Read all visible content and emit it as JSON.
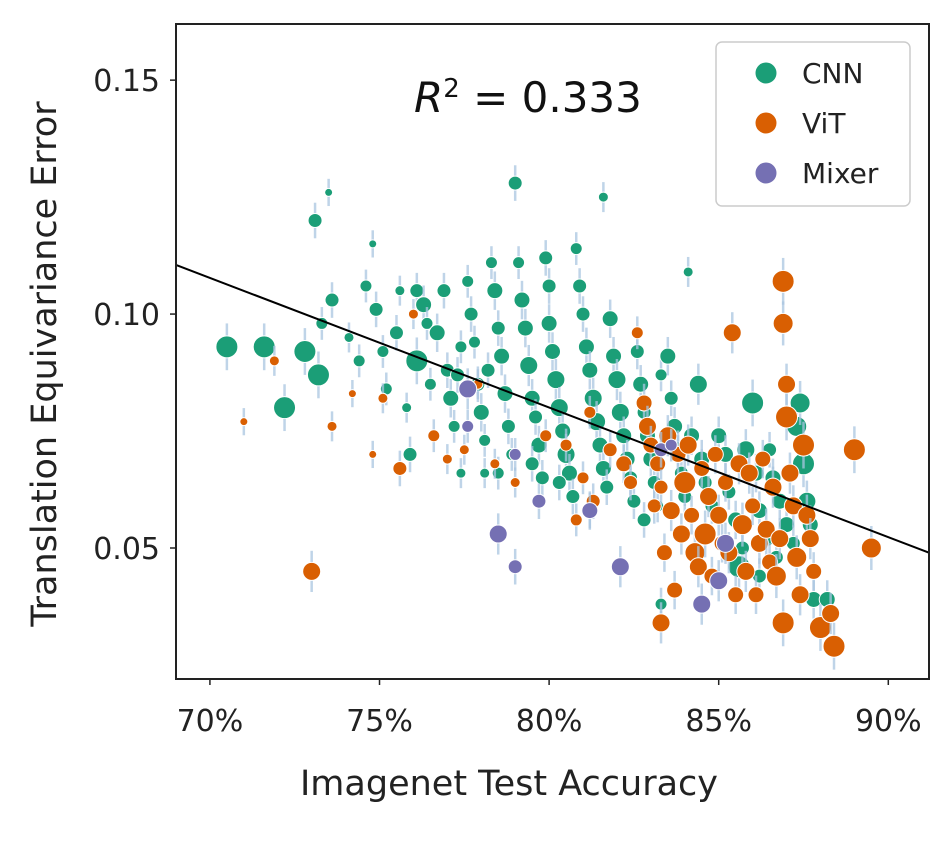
{
  "chart_data": {
    "type": "scatter",
    "xlabel": "Imagenet Test Accuracy",
    "ylabel": "Translation Equivariance Error",
    "xlim": [
      0.69,
      0.912
    ],
    "ylim": [
      0.022,
      0.162
    ],
    "xticks": [
      0.7,
      0.75,
      0.8,
      0.85,
      0.9
    ],
    "xtick_labels": [
      "70%",
      "75%",
      "80%",
      "85%",
      "90%"
    ],
    "yticks": [
      0.05,
      0.1,
      0.15
    ],
    "ytick_labels": [
      "0.05",
      "0.10",
      "0.15"
    ],
    "grid": false,
    "legend_position": "top-right",
    "annotation": {
      "prefix": "R",
      "sup": "2",
      "suffix": " = 0.333"
    },
    "fit_line": {
      "x": [
        0.69,
        0.912
      ],
      "y": [
        0.1105,
        0.049
      ]
    },
    "series": [
      {
        "name": "CNN",
        "color": "#1b9e77",
        "points": [
          [
            0.705,
            0.093,
            11
          ],
          [
            0.716,
            0.093,
            11
          ],
          [
            0.728,
            0.092,
            11
          ],
          [
            0.722,
            0.08,
            11
          ],
          [
            0.732,
            0.087,
            11
          ],
          [
            0.731,
            0.12,
            7
          ],
          [
            0.733,
            0.098,
            6
          ],
          [
            0.735,
            0.126,
            4
          ],
          [
            0.736,
            0.103,
            7
          ],
          [
            0.741,
            0.095,
            5
          ],
          [
            0.744,
            0.09,
            6
          ],
          [
            0.746,
            0.106,
            6
          ],
          [
            0.748,
            0.115,
            4
          ],
          [
            0.749,
            0.101,
            7
          ],
          [
            0.751,
            0.092,
            6
          ],
          [
            0.752,
            0.084,
            6
          ],
          [
            0.755,
            0.096,
            7
          ],
          [
            0.756,
            0.105,
            5
          ],
          [
            0.758,
            0.08,
            5
          ],
          [
            0.759,
            0.07,
            7
          ],
          [
            0.761,
            0.105,
            7
          ],
          [
            0.761,
            0.09,
            11
          ],
          [
            0.763,
            0.102,
            8
          ],
          [
            0.764,
            0.098,
            6
          ],
          [
            0.765,
            0.085,
            6
          ],
          [
            0.767,
            0.096,
            8
          ],
          [
            0.769,
            0.105,
            7
          ],
          [
            0.77,
            0.088,
            7
          ],
          [
            0.771,
            0.082,
            8
          ],
          [
            0.772,
            0.076,
            6
          ],
          [
            0.773,
            0.087,
            7
          ],
          [
            0.774,
            0.093,
            6
          ],
          [
            0.774,
            0.066,
            5
          ],
          [
            0.776,
            0.107,
            6
          ],
          [
            0.777,
            0.1,
            7
          ],
          [
            0.778,
            0.094,
            6
          ],
          [
            0.779,
            0.085,
            7
          ],
          [
            0.78,
            0.079,
            8
          ],
          [
            0.781,
            0.073,
            6
          ],
          [
            0.781,
            0.066,
            5
          ],
          [
            0.782,
            0.088,
            7
          ],
          [
            0.783,
            0.111,
            6
          ],
          [
            0.784,
            0.105,
            8
          ],
          [
            0.785,
            0.097,
            7
          ],
          [
            0.786,
            0.091,
            8
          ],
          [
            0.787,
            0.083,
            8
          ],
          [
            0.788,
            0.076,
            7
          ],
          [
            0.789,
            0.07,
            6
          ],
          [
            0.79,
            0.128,
            7
          ],
          [
            0.791,
            0.111,
            6
          ],
          [
            0.792,
            0.103,
            8
          ],
          [
            0.793,
            0.097,
            8
          ],
          [
            0.794,
            0.089,
            9
          ],
          [
            0.795,
            0.082,
            8
          ],
          [
            0.796,
            0.078,
            7
          ],
          [
            0.797,
            0.072,
            8
          ],
          [
            0.798,
            0.065,
            7
          ],
          [
            0.799,
            0.112,
            7
          ],
          [
            0.8,
            0.106,
            7
          ],
          [
            0.8,
            0.098,
            8
          ],
          [
            0.801,
            0.092,
            8
          ],
          [
            0.802,
            0.086,
            9
          ],
          [
            0.803,
            0.08,
            9
          ],
          [
            0.804,
            0.075,
            8
          ],
          [
            0.805,
            0.07,
            9
          ],
          [
            0.806,
            0.066,
            8
          ],
          [
            0.807,
            0.061,
            7
          ],
          [
            0.808,
            0.114,
            6
          ],
          [
            0.809,
            0.106,
            7
          ],
          [
            0.81,
            0.1,
            7
          ],
          [
            0.811,
            0.093,
            8
          ],
          [
            0.812,
            0.088,
            8
          ],
          [
            0.813,
            0.082,
            9
          ],
          [
            0.814,
            0.077,
            9
          ],
          [
            0.815,
            0.072,
            8
          ],
          [
            0.816,
            0.067,
            8
          ],
          [
            0.817,
            0.063,
            7
          ],
          [
            0.816,
            0.125,
            5
          ],
          [
            0.818,
            0.099,
            8
          ],
          [
            0.819,
            0.091,
            8
          ],
          [
            0.82,
            0.086,
            9
          ],
          [
            0.821,
            0.079,
            9
          ],
          [
            0.822,
            0.074,
            8
          ],
          [
            0.823,
            0.069,
            8
          ],
          [
            0.824,
            0.065,
            7
          ],
          [
            0.825,
            0.06,
            7
          ],
          [
            0.826,
            0.092,
            7
          ],
          [
            0.827,
            0.085,
            8
          ],
          [
            0.828,
            0.079,
            7
          ],
          [
            0.829,
            0.074,
            8
          ],
          [
            0.83,
            0.069,
            8
          ],
          [
            0.831,
            0.064,
            7
          ],
          [
            0.832,
            0.059,
            6
          ],
          [
            0.833,
            0.087,
            6
          ],
          [
            0.835,
            0.091,
            8
          ],
          [
            0.836,
            0.082,
            7
          ],
          [
            0.837,
            0.076,
            8
          ],
          [
            0.838,
            0.071,
            8
          ],
          [
            0.839,
            0.066,
            7
          ],
          [
            0.84,
            0.061,
            7
          ],
          [
            0.841,
            0.109,
            5
          ],
          [
            0.842,
            0.074,
            8
          ],
          [
            0.844,
            0.085,
            9
          ],
          [
            0.845,
            0.069,
            8
          ],
          [
            0.846,
            0.064,
            7
          ],
          [
            0.848,
            0.059,
            7
          ],
          [
            0.85,
            0.074,
            8
          ],
          [
            0.852,
            0.07,
            8
          ],
          [
            0.853,
            0.062,
            7
          ],
          [
            0.855,
            0.056,
            8
          ],
          [
            0.856,
            0.046,
            11
          ],
          [
            0.858,
            0.071,
            9
          ],
          [
            0.86,
            0.081,
            11
          ],
          [
            0.861,
            0.066,
            8
          ],
          [
            0.862,
            0.058,
            8
          ],
          [
            0.864,
            0.052,
            8
          ],
          [
            0.865,
            0.071,
            7
          ],
          [
            0.866,
            0.065,
            8
          ],
          [
            0.868,
            0.06,
            8
          ],
          [
            0.87,
            0.055,
            8
          ],
          [
            0.872,
            0.051,
            7
          ],
          [
            0.873,
            0.076,
            10
          ],
          [
            0.874,
            0.081,
            10
          ],
          [
            0.875,
            0.068,
            11
          ],
          [
            0.876,
            0.06,
            9
          ],
          [
            0.877,
            0.055,
            8
          ],
          [
            0.878,
            0.039,
            8
          ],
          [
            0.882,
            0.039,
            8
          ],
          [
            0.833,
            0.038,
            6
          ],
          [
            0.862,
            0.044,
            7
          ],
          [
            0.857,
            0.05,
            7
          ],
          [
            0.867,
            0.048,
            7
          ],
          [
            0.828,
            0.056,
            7
          ],
          [
            0.812,
            0.058,
            7
          ],
          [
            0.803,
            0.064,
            7
          ],
          [
            0.795,
            0.068,
            7
          ],
          [
            0.785,
            0.066,
            6
          ]
        ]
      },
      {
        "name": "ViT",
        "color": "#d95f02",
        "points": [
          [
            0.719,
            0.09,
            5
          ],
          [
            0.71,
            0.077,
            4
          ],
          [
            0.73,
            0.045,
            9
          ],
          [
            0.736,
            0.076,
            5
          ],
          [
            0.742,
            0.083,
            4
          ],
          [
            0.748,
            0.07,
            4
          ],
          [
            0.751,
            0.082,
            5
          ],
          [
            0.756,
            0.067,
            7
          ],
          [
            0.76,
            0.1,
            5
          ],
          [
            0.766,
            0.074,
            6
          ],
          [
            0.77,
            0.069,
            5
          ],
          [
            0.775,
            0.071,
            5
          ],
          [
            0.779,
            0.085,
            5
          ],
          [
            0.784,
            0.068,
            5
          ],
          [
            0.79,
            0.064,
            5
          ],
          [
            0.799,
            0.074,
            6
          ],
          [
            0.805,
            0.072,
            6
          ],
          [
            0.808,
            0.056,
            6
          ],
          [
            0.81,
            0.065,
            6
          ],
          [
            0.812,
            0.079,
            6
          ],
          [
            0.813,
            0.06,
            7
          ],
          [
            0.818,
            0.071,
            7
          ],
          [
            0.822,
            0.068,
            8
          ],
          [
            0.824,
            0.064,
            7
          ],
          [
            0.826,
            0.096,
            6
          ],
          [
            0.828,
            0.081,
            8
          ],
          [
            0.829,
            0.076,
            9
          ],
          [
            0.83,
            0.072,
            8
          ],
          [
            0.831,
            0.059,
            7
          ],
          [
            0.832,
            0.068,
            8
          ],
          [
            0.833,
            0.063,
            7
          ],
          [
            0.834,
            0.049,
            8
          ],
          [
            0.835,
            0.074,
            9
          ],
          [
            0.836,
            0.058,
            9
          ],
          [
            0.837,
            0.041,
            8
          ],
          [
            0.838,
            0.07,
            8
          ],
          [
            0.839,
            0.053,
            9
          ],
          [
            0.84,
            0.064,
            11
          ],
          [
            0.841,
            0.072,
            9
          ],
          [
            0.842,
            0.057,
            8
          ],
          [
            0.843,
            0.049,
            10
          ],
          [
            0.844,
            0.046,
            9
          ],
          [
            0.845,
            0.067,
            8
          ],
          [
            0.846,
            0.053,
            11
          ],
          [
            0.847,
            0.061,
            9
          ],
          [
            0.848,
            0.044,
            8
          ],
          [
            0.849,
            0.07,
            8
          ],
          [
            0.85,
            0.057,
            9
          ],
          [
            0.851,
            0.051,
            8
          ],
          [
            0.852,
            0.064,
            8
          ],
          [
            0.853,
            0.049,
            9
          ],
          [
            0.854,
            0.096,
            9
          ],
          [
            0.855,
            0.04,
            8
          ],
          [
            0.856,
            0.068,
            9
          ],
          [
            0.857,
            0.055,
            10
          ],
          [
            0.858,
            0.045,
            9
          ],
          [
            0.859,
            0.066,
            9
          ],
          [
            0.86,
            0.059,
            8
          ],
          [
            0.861,
            0.04,
            8
          ],
          [
            0.862,
            0.051,
            9
          ],
          [
            0.863,
            0.069,
            8
          ],
          [
            0.864,
            0.054,
            9
          ],
          [
            0.865,
            0.047,
            8
          ],
          [
            0.866,
            0.063,
            9
          ],
          [
            0.867,
            0.044,
            10
          ],
          [
            0.868,
            0.052,
            9
          ],
          [
            0.869,
            0.107,
            11
          ],
          [
            0.869,
            0.098,
            10
          ],
          [
            0.87,
            0.085,
            9
          ],
          [
            0.87,
            0.078,
            11
          ],
          [
            0.871,
            0.066,
            9
          ],
          [
            0.872,
            0.059,
            9
          ],
          [
            0.873,
            0.048,
            10
          ],
          [
            0.874,
            0.04,
            9
          ],
          [
            0.875,
            0.072,
            11
          ],
          [
            0.876,
            0.057,
            9
          ],
          [
            0.877,
            0.052,
            9
          ],
          [
            0.878,
            0.045,
            8
          ],
          [
            0.88,
            0.033,
            11
          ],
          [
            0.884,
            0.029,
            11
          ],
          [
            0.89,
            0.071,
            11
          ],
          [
            0.895,
            0.05,
            10
          ],
          [
            0.869,
            0.034,
            11
          ],
          [
            0.883,
            0.036,
            9
          ],
          [
            0.833,
            0.034,
            9
          ]
        ]
      },
      {
        "name": "Mixer",
        "color": "#7570b3",
        "points": [
          [
            0.776,
            0.084,
            9
          ],
          [
            0.776,
            0.076,
            6
          ],
          [
            0.785,
            0.053,
            9
          ],
          [
            0.79,
            0.046,
            7
          ],
          [
            0.79,
            0.07,
            6
          ],
          [
            0.797,
            0.06,
            7
          ],
          [
            0.812,
            0.058,
            8
          ],
          [
            0.821,
            0.046,
            9
          ],
          [
            0.833,
            0.071,
            7
          ],
          [
            0.845,
            0.038,
            9
          ],
          [
            0.85,
            0.043,
            9
          ],
          [
            0.852,
            0.051,
            9
          ],
          [
            0.836,
            0.072,
            6
          ]
        ]
      }
    ]
  }
}
